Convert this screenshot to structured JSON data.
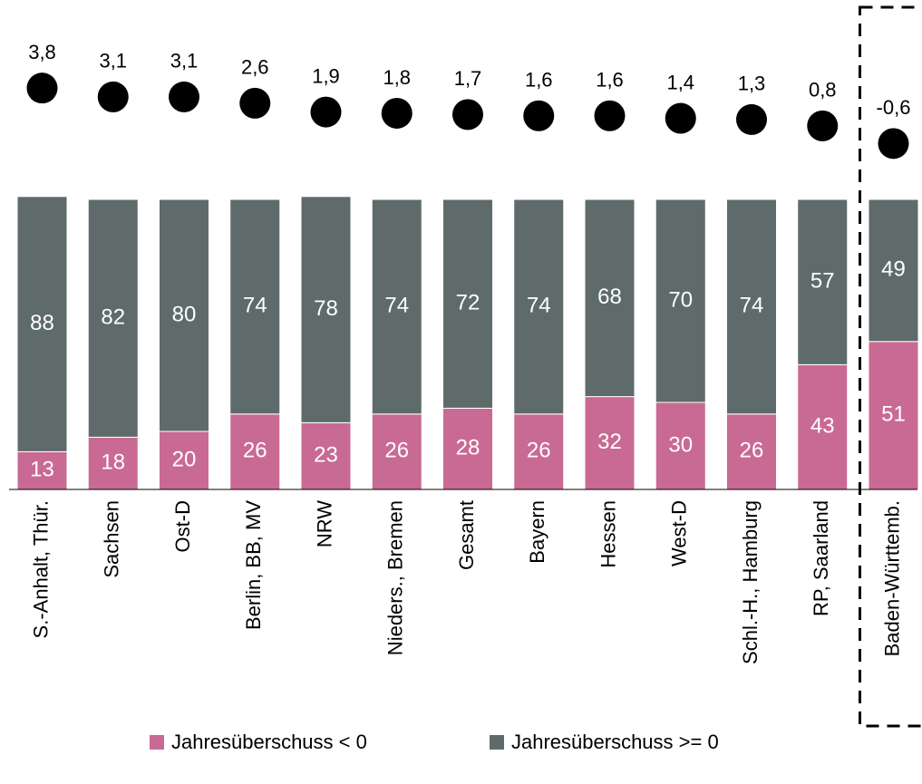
{
  "chart_data": {
    "type": "bar",
    "stacked": true,
    "categories": [
      "S.-Anhalt, Thür.",
      "Sachsen",
      "Ost-D",
      "Berlin, BB, MV",
      "NRW",
      "Nieders., Bremen",
      "Gesamt",
      "Bayern",
      "Hessen",
      "West-D",
      "Schl.-H., Hamburg",
      "RP, Saarland",
      "Baden-Württemb."
    ],
    "series": [
      {
        "name": "Jahresüberschuss < 0",
        "color": "#c96a94",
        "values": [
          13,
          18,
          20,
          26,
          23,
          26,
          28,
          26,
          32,
          30,
          26,
          43,
          51
        ]
      },
      {
        "name": "Jahresüberschuss >= 0",
        "color": "#5f6b6b",
        "values": [
          88,
          82,
          80,
          74,
          78,
          74,
          72,
          74,
          68,
          70,
          74,
          57,
          49
        ]
      }
    ],
    "dots": {
      "color": "#000000",
      "values": [
        3.8,
        3.1,
        3.1,
        2.6,
        1.9,
        1.8,
        1.7,
        1.6,
        1.6,
        1.4,
        1.3,
        0.8,
        -0.6
      ],
      "value_labels": [
        "3,8",
        "3,1",
        "3,1",
        "2,6",
        "1,9",
        "1,8",
        "1,7",
        "1,6",
        "1,6",
        "1,4",
        "1,3",
        "0,8",
        "-0,6"
      ]
    }
  }
}
